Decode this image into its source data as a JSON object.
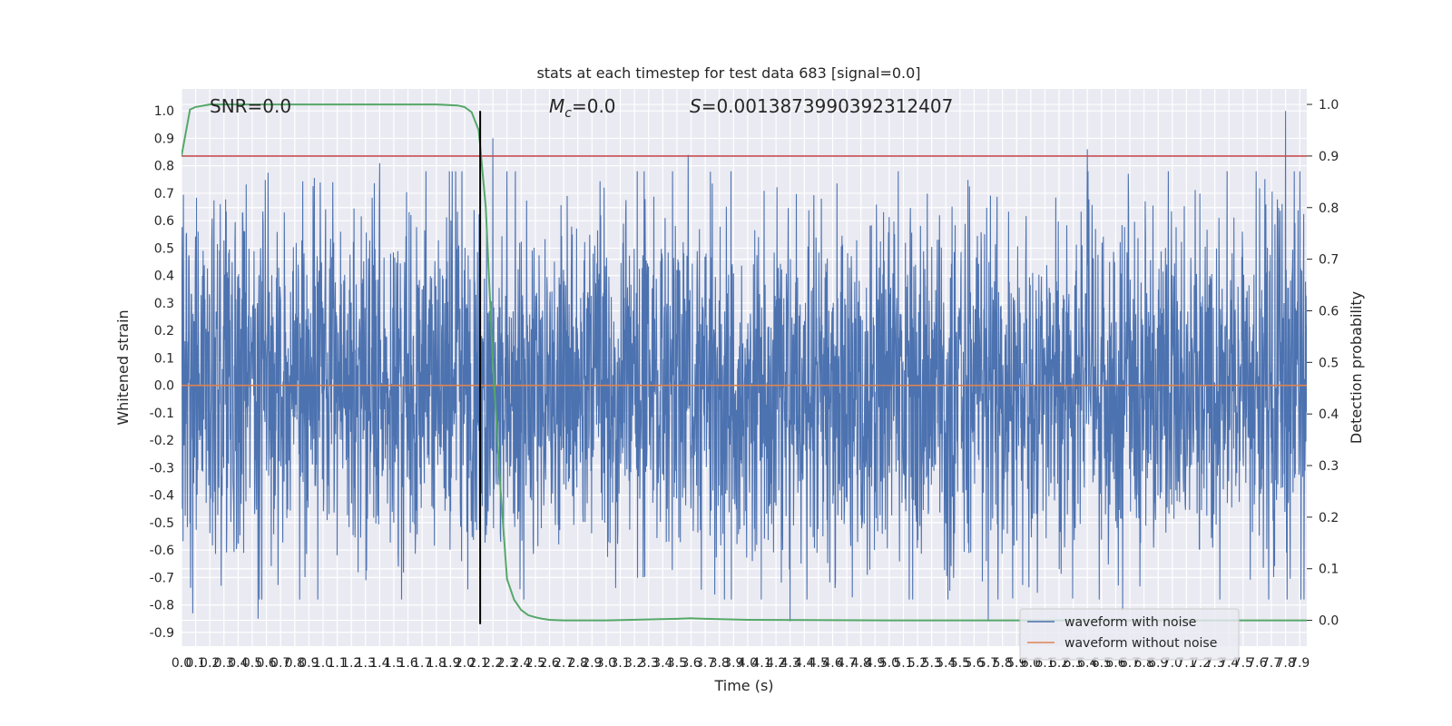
{
  "chart_data": {
    "type": "line",
    "title": "stats at each timestep for test data 683 [signal=0.0]",
    "xlabel": "Time (s)",
    "ylabel": "Whitened strain",
    "y2label": "Detection probability",
    "xlim": [
      0.0,
      7.95
    ],
    "ylim": [
      -0.95,
      1.08
    ],
    "y2lim": [
      -0.05,
      1.03
    ],
    "x_ticks": [
      "0.0",
      "0.1",
      "0.2",
      "0.3",
      "0.4",
      "0.5",
      "0.6",
      "0.7",
      "0.8",
      "0.9",
      "1.0",
      "1.1",
      "1.2",
      "1.3",
      "1.4",
      "1.5",
      "1.6",
      "1.7",
      "1.8",
      "1.9",
      "2.0",
      "2.1",
      "2.2",
      "2.3",
      "2.4",
      "2.5",
      "2.6",
      "2.7",
      "2.8",
      "2.9",
      "3.0",
      "3.1",
      "3.2",
      "3.3",
      "3.4",
      "3.5",
      "3.6",
      "3.7",
      "3.8",
      "3.9",
      "4.0",
      "4.1",
      "4.2",
      "4.3",
      "4.4",
      "4.5",
      "4.6",
      "4.7",
      "4.8",
      "4.9",
      "5.0",
      "5.1",
      "5.2",
      "5.3",
      "5.4",
      "5.5",
      "5.6",
      "5.7",
      "5.8",
      "5.9",
      "6.0",
      "6.1",
      "6.2",
      "6.3",
      "6.4",
      "6.5",
      "6.6",
      "6.7",
      "6.8",
      "6.9",
      "7.0",
      "7.1",
      "7.2",
      "7.3",
      "7.4",
      "7.5",
      "7.6",
      "7.7",
      "7.8",
      "7.9"
    ],
    "y_ticks": [
      "1.0",
      "0.9",
      "0.8",
      "0.7",
      "0.6",
      "0.5",
      "0.4",
      "0.3",
      "0.2",
      "0.1",
      "0.0",
      "-0.1",
      "-0.2",
      "-0.3",
      "-0.4",
      "-0.5",
      "-0.6",
      "-0.7",
      "-0.8",
      "-0.9"
    ],
    "y2_ticks": [
      "1.0",
      "0.9",
      "0.8",
      "0.7",
      "0.6",
      "0.5",
      "0.4",
      "0.3",
      "0.2",
      "0.1",
      "0.0"
    ],
    "grid": true,
    "legend_position": "lower-right",
    "annotations": {
      "snr": "SNR=0.0",
      "mc_symbol": "M",
      "mc_sub": "c",
      "mc_value": "=0.0",
      "s_symbol": "S",
      "s_value": "=0.0013873990392312407"
    },
    "series": [
      {
        "name": "waveform with noise",
        "color": "#4c72b0",
        "axis": "left",
        "description_values": "dense noise, envelope approx -0.6 to 0.6 with spikes",
        "peak_spikes": [
          {
            "x": 0.08,
            "y": -0.83
          },
          {
            "x": 0.54,
            "y": -0.85
          },
          {
            "x": 1.4,
            "y": 0.81
          },
          {
            "x": 2.2,
            "y": 0.9
          },
          {
            "x": 3.58,
            "y": 0.84
          },
          {
            "x": 4.3,
            "y": -0.86
          },
          {
            "x": 5.7,
            "y": -0.86
          },
          {
            "x": 6.4,
            "y": 0.86
          },
          {
            "x": 6.65,
            "y": -0.82
          },
          {
            "x": 7.8,
            "y": 1.0
          }
        ]
      },
      {
        "name": "waveform without noise",
        "color": "#dd8452",
        "axis": "left",
        "x": [
          0.0,
          7.95
        ],
        "values": [
          0.0,
          0.0
        ]
      },
      {
        "color": "#55a868",
        "axis": "right",
        "x": [
          0.0,
          0.06,
          0.1,
          0.2,
          0.5,
          1.0,
          1.5,
          1.8,
          1.95,
          2.0,
          2.05,
          2.1,
          2.15,
          2.2,
          2.25,
          2.3,
          2.35,
          2.4,
          2.45,
          2.5,
          2.55,
          2.6,
          2.7,
          3.0,
          3.5,
          3.6,
          3.7,
          4.0,
          5.0,
          6.0,
          7.0,
          7.95
        ],
        "values": [
          0.9,
          0.99,
          0.995,
          1.0,
          1.0,
          1.0,
          1.0,
          1.0,
          0.998,
          0.995,
          0.985,
          0.95,
          0.8,
          0.5,
          0.27,
          0.08,
          0.04,
          0.02,
          0.01,
          0.006,
          0.003,
          0.001,
          0.0,
          0.0,
          0.003,
          0.004,
          0.003,
          0.001,
          0.0,
          0.0,
          0.0,
          0.0
        ]
      }
    ],
    "threshold_line": {
      "axis": "right",
      "value": 0.9,
      "color": "#c44e52"
    },
    "vertical_marker": {
      "x": 2.11,
      "color": "#000000",
      "y_from": -0.87,
      "y_to": 1.0
    }
  }
}
